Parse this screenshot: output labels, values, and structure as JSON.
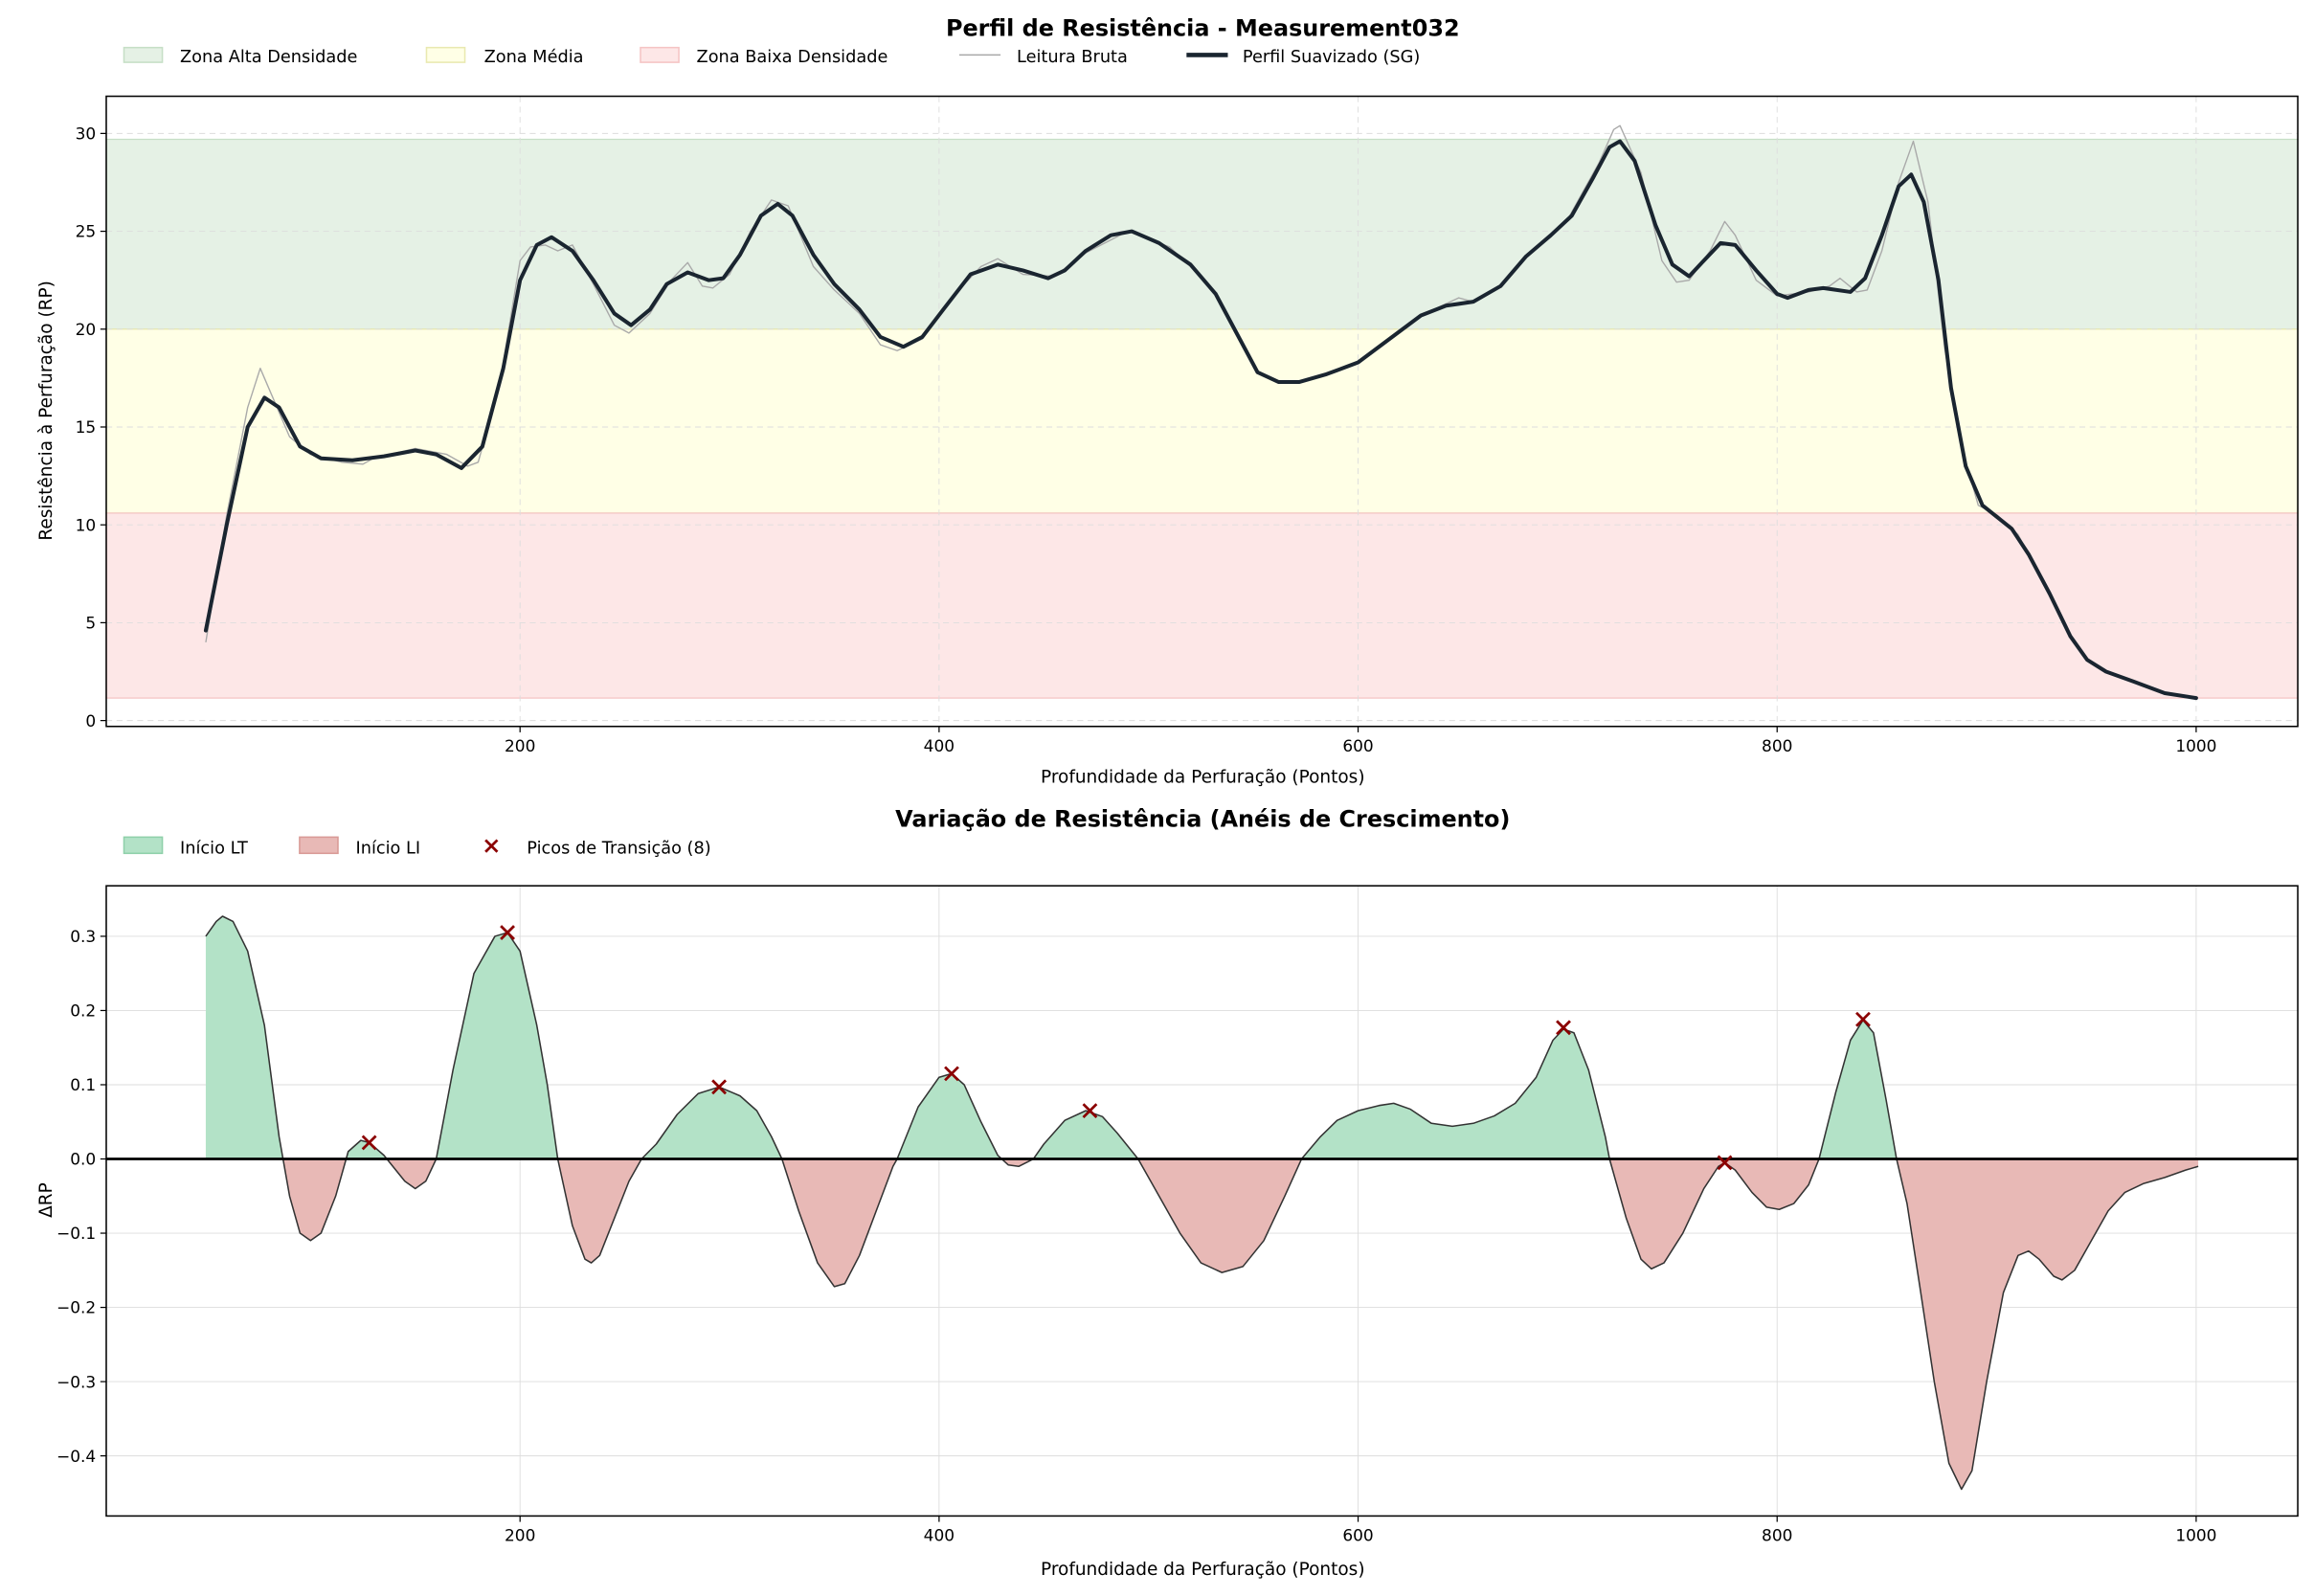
{
  "chart_data": [
    {
      "type": "line",
      "title": "Perfil de Resistência - Measurement032",
      "xlabel": "Profundidade da Perfuração (Pontos)",
      "ylabel": "Resistência à Perfuração (RP)",
      "xlim": [
        2.5,
        1048.5
      ],
      "ylim": [
        -0.3,
        31.9
      ],
      "xticks": [
        200,
        400,
        600,
        800,
        1000
      ],
      "yticks": [
        0,
        5,
        10,
        15,
        20,
        25,
        30
      ],
      "grid": true,
      "legend_position": "top-left, above plot",
      "zones": [
        {
          "name": "Zona Alta Densidade",
          "range": [
            20.0,
            29.7
          ],
          "color": "#e5f1e5",
          "edge": "#c6dfc6"
        },
        {
          "name": "Zona Média",
          "range": [
            10.6,
            20.0
          ],
          "color": "#ffffe6",
          "edge": "#e9e9b0"
        },
        {
          "name": "Zona Baixa Densidade",
          "range": [
            1.15,
            10.6
          ],
          "color": "#fde7e7",
          "edge": "#f5c4c4"
        }
      ],
      "series": [
        {
          "name": "Leitura Bruta",
          "color": "#a9a9a9",
          "x": [
            50,
            60,
            70,
            76,
            82,
            90,
            100,
            115,
            125,
            130,
            150,
            165,
            175,
            180,
            190,
            200,
            205,
            212,
            218,
            225,
            235,
            245,
            252,
            262,
            272,
            280,
            287,
            292,
            300,
            310,
            320,
            328,
            340,
            350,
            362,
            372,
            380,
            392,
            405,
            420,
            428,
            440,
            455,
            470,
            490,
            510,
            520,
            532,
            542,
            552,
            562,
            572,
            585,
            600,
            615,
            630,
            640,
            648,
            655,
            668,
            680,
            692,
            700,
            715,
            722,
            725,
            735,
            745,
            752,
            758,
            768,
            775,
            780,
            790,
            800,
            815,
            825,
            830,
            838,
            843,
            850,
            858,
            865,
            872,
            880,
            888,
            896,
            905,
            915,
            920,
            930,
            940,
            948,
            957,
            970,
            985,
            1000
          ],
          "y": [
            4.0,
            10.5,
            16.0,
            18.0,
            16.5,
            14.5,
            13.6,
            13.2,
            13.1,
            13.4,
            13.9,
            13.6,
            13.0,
            13.2,
            17.0,
            23.5,
            24.2,
            24.3,
            24.0,
            24.3,
            22.3,
            20.2,
            19.8,
            20.8,
            22.5,
            23.4,
            22.2,
            22.1,
            22.8,
            25.0,
            26.6,
            26.3,
            23.2,
            22.0,
            20.8,
            19.2,
            18.9,
            19.5,
            21.5,
            23.2,
            23.6,
            22.8,
            22.7,
            23.9,
            25.0,
            24.2,
            23.2,
            21.8,
            19.8,
            17.8,
            17.3,
            17.3,
            17.7,
            18.3,
            19.5,
            20.7,
            21.2,
            21.6,
            21.4,
            22.2,
            23.7,
            24.8,
            25.6,
            28.5,
            30.2,
            30.4,
            28.0,
            23.5,
            22.4,
            22.5,
            24.0,
            25.5,
            24.8,
            22.5,
            21.7,
            21.9,
            22.2,
            22.6,
            21.9,
            22.0,
            24.0,
            27.5,
            29.6,
            26.5,
            19.0,
            14.0,
            11.0,
            10.5,
            9.5,
            8.5,
            6.5,
            4.3,
            3.1,
            2.5,
            2.0,
            1.4,
            1.15
          ]
        },
        {
          "name": "Perfil Suavizado (SG)",
          "color": "#1a2530",
          "x": [
            50,
            60,
            70,
            78,
            85,
            95,
            105,
            120,
            135,
            150,
            160,
            172,
            182,
            192,
            200,
            208,
            215,
            225,
            235,
            245,
            253,
            262,
            270,
            280,
            290,
            297,
            305,
            315,
            323,
            330,
            340,
            350,
            362,
            372,
            383,
            392,
            402,
            415,
            428,
            440,
            452,
            460,
            470,
            482,
            492,
            505,
            520,
            532,
            542,
            552,
            562,
            572,
            585,
            600,
            615,
            630,
            642,
            655,
            668,
            680,
            692,
            702,
            712,
            720,
            725,
            732,
            742,
            750,
            758,
            765,
            773,
            780,
            790,
            800,
            805,
            815,
            822,
            835,
            842,
            850,
            858,
            864,
            870,
            877,
            883,
            890,
            898,
            905,
            912,
            920,
            930,
            940,
            948,
            957,
            970,
            985,
            1000
          ],
          "y": [
            4.6,
            10.0,
            15.0,
            16.5,
            16.0,
            14.0,
            13.4,
            13.3,
            13.5,
            13.8,
            13.6,
            12.9,
            14.0,
            18.0,
            22.5,
            24.3,
            24.7,
            24.0,
            22.5,
            20.8,
            20.2,
            21.0,
            22.3,
            22.9,
            22.5,
            22.6,
            23.8,
            25.8,
            26.4,
            25.8,
            23.8,
            22.3,
            21.0,
            19.6,
            19.1,
            19.6,
            21.0,
            22.8,
            23.3,
            23.0,
            22.6,
            23.0,
            24.0,
            24.8,
            25.0,
            24.4,
            23.3,
            21.8,
            19.8,
            17.8,
            17.3,
            17.3,
            17.7,
            18.3,
            19.5,
            20.7,
            21.2,
            21.4,
            22.2,
            23.7,
            24.8,
            25.8,
            27.7,
            29.3,
            29.6,
            28.6,
            25.3,
            23.3,
            22.7,
            23.5,
            24.4,
            24.3,
            23.0,
            21.8,
            21.6,
            22.0,
            22.1,
            21.9,
            22.6,
            24.8,
            27.3,
            27.9,
            26.5,
            22.5,
            17.0,
            13.0,
            11.0,
            10.4,
            9.8,
            8.5,
            6.5,
            4.3,
            3.1,
            2.5,
            2.0,
            1.4,
            1.15
          ]
        }
      ]
    },
    {
      "type": "area",
      "title": "Variação de Resistência (Anéis de Crescimento)",
      "xlabel": "Profundidade da Perfuração (Pontos)",
      "ylabel": "ΔRP",
      "xlim": [
        2.5,
        1048.5
      ],
      "ylim": [
        -0.481,
        0.368
      ],
      "xticks": [
        200,
        400,
        600,
        800,
        1000
      ],
      "yticks": [
        -0.4,
        -0.3,
        -0.2,
        -0.1,
        0.0,
        0.1,
        0.2,
        0.3
      ],
      "ytick_labels": [
        "−0.4",
        "−0.3",
        "−0.2",
        "−0.1",
        "0.0",
        "0.1",
        "0.2",
        "0.3"
      ],
      "grid": true,
      "legend_position": "top-left, above plot",
      "legend": [
        "Início LT",
        "Início LI",
        "Picos de Transição (8)"
      ],
      "colors": {
        "positive": "#b3e2c7",
        "negative": "#e8b9b6",
        "line": "#333333",
        "zero_line": "#000000",
        "peaks": "#8b0000"
      },
      "series": {
        "x": [
          50,
          55,
          58,
          63,
          70,
          78,
          85,
          90,
          95,
          100,
          105,
          112,
          118,
          124,
          128,
          135,
          145,
          150,
          155,
          160,
          168,
          178,
          188,
          194,
          200,
          208,
          213,
          218,
          225,
          231,
          234,
          238,
          245,
          252,
          258,
          265,
          275,
          285,
          295,
          305,
          313,
          320,
          325,
          333,
          342,
          350,
          355,
          362,
          370,
          378,
          380,
          390,
          400,
          406,
          412,
          420,
          428,
          433,
          438,
          445,
          450,
          460,
          470,
          478,
          485,
          495,
          505,
          515,
          525,
          535,
          545,
          555,
          565,
          573,
          582,
          590,
          600,
          610,
          617,
          625,
          635,
          645,
          655,
          665,
          675,
          685,
          693,
          698,
          703,
          710,
          718,
          720,
          728,
          735,
          740,
          746,
          755,
          765,
          772,
          775,
          780,
          788,
          795,
          801,
          808,
          815,
          820,
          828,
          835,
          841,
          846,
          852,
          857,
          862,
          868,
          875,
          882,
          888,
          893,
          900,
          908,
          915,
          920,
          925,
          932,
          936,
          942,
          950,
          958,
          966,
          975,
          985,
          995,
          1001
        ],
        "y": [
          0.3,
          0.32,
          0.327,
          0.32,
          0.28,
          0.18,
          0.03,
          -0.05,
          -0.1,
          -0.11,
          -0.1,
          -0.05,
          0.01,
          0.025,
          0.022,
          0.005,
          -0.03,
          -0.04,
          -0.03,
          0.0,
          0.12,
          0.25,
          0.3,
          0.305,
          0.28,
          0.18,
          0.1,
          0.0,
          -0.09,
          -0.135,
          -0.14,
          -0.13,
          -0.08,
          -0.03,
          0.0,
          0.02,
          0.06,
          0.088,
          0.097,
          0.085,
          0.065,
          0.03,
          0.0,
          -0.07,
          -0.14,
          -0.172,
          -0.168,
          -0.13,
          -0.07,
          -0.01,
          0.0,
          0.07,
          0.11,
          0.115,
          0.1,
          0.05,
          0.005,
          -0.008,
          -0.01,
          0.0,
          0.02,
          0.052,
          0.065,
          0.057,
          0.035,
          0.0,
          -0.05,
          -0.1,
          -0.14,
          -0.153,
          -0.145,
          -0.11,
          -0.05,
          0.0,
          0.03,
          0.052,
          0.065,
          0.072,
          0.075,
          0.067,
          0.048,
          0.044,
          0.048,
          0.058,
          0.075,
          0.11,
          0.16,
          0.175,
          0.17,
          0.12,
          0.03,
          0.0,
          -0.08,
          -0.135,
          -0.148,
          -0.14,
          -0.1,
          -0.04,
          -0.01,
          -0.005,
          -0.015,
          -0.045,
          -0.065,
          -0.068,
          -0.06,
          -0.035,
          0.0,
          0.09,
          0.16,
          0.187,
          0.17,
          0.08,
          0.0,
          -0.06,
          -0.17,
          -0.3,
          -0.41,
          -0.445,
          -0.42,
          -0.3,
          -0.18,
          -0.13,
          -0.124,
          -0.135,
          -0.158,
          -0.163,
          -0.15,
          -0.11,
          -0.07,
          -0.045,
          -0.033,
          -0.025,
          -0.015,
          -0.01
        ]
      },
      "peaks": {
        "x": [
          128,
          194,
          295,
          406,
          472,
          698,
          775,
          841
        ],
        "y": [
          0.022,
          0.305,
          0.097,
          0.115,
          0.065,
          0.177,
          -0.005,
          0.188
        ]
      }
    }
  ]
}
